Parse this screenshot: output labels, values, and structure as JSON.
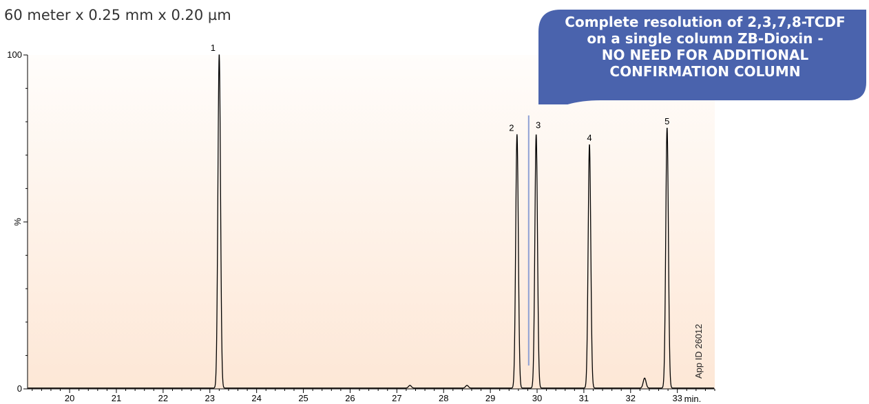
{
  "subtitle": "60 meter x 0.25 mm x 0.20 µm",
  "callout": {
    "lines": [
      "Complete resolution of 2,3,7,8-TCDF",
      "on a single column ZB-Dioxin -",
      "NO NEED FOR ADDITIONAL",
      "CONFIRMATION COLUMN"
    ],
    "color": "#4a63ad",
    "points_to_time": 29.82
  },
  "app_id": "App ID 26012",
  "chart_data": {
    "type": "line",
    "title": "",
    "xlabel": "",
    "ylabel": "%",
    "x_unit_label": "min.",
    "xlim": [
      19.1,
      33.8
    ],
    "ylim": [
      0,
      100
    ],
    "x_ticks": [
      "20",
      "21",
      "22",
      "23",
      "24",
      "25",
      "26",
      "27",
      "28",
      "29",
      "30",
      "31",
      "32",
      "33"
    ],
    "y_ticks": [
      "0",
      "100"
    ],
    "trace_color": "#000000",
    "background_gradient": [
      "#fffdfb",
      "#fde7d6"
    ],
    "peaks": [
      {
        "label": "1",
        "rt": 23.2,
        "height": 100
      },
      {
        "label": "2",
        "rt": 29.57,
        "height": 76
      },
      {
        "label": "3",
        "rt": 29.98,
        "height": 76
      },
      {
        "label": "4",
        "rt": 31.12,
        "height": 73
      },
      {
        "label": "5",
        "rt": 32.78,
        "height": 78
      }
    ],
    "minor_peaks": [
      {
        "rt": 27.28,
        "height": 0.8
      },
      {
        "rt": 28.5,
        "height": 0.8
      },
      {
        "rt": 32.3,
        "height": 3
      }
    ]
  }
}
